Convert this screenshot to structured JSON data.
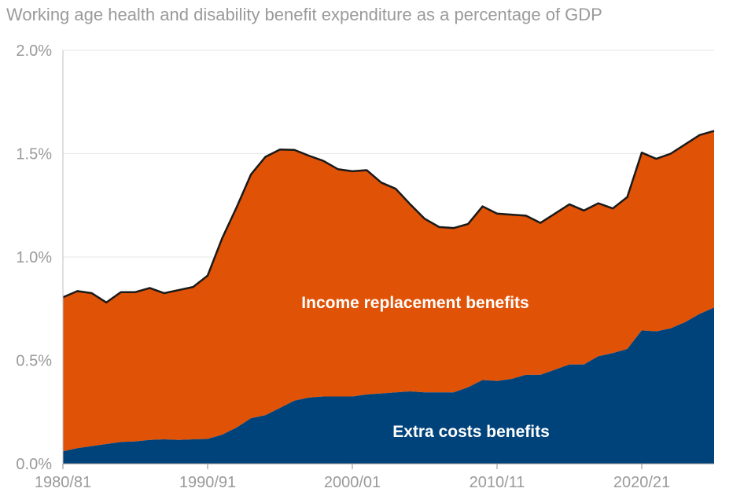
{
  "chart_data": {
    "type": "area",
    "title": "Working age health and disability benefit expenditure as a percentage of GDP",
    "xlabel": "",
    "ylabel": "",
    "ylim": [
      0,
      2.0
    ],
    "y_ticks": [
      "0.0%",
      "0.5%",
      "1.0%",
      "1.5%",
      "2.0%"
    ],
    "y_tick_values": [
      0,
      0.5,
      1.0,
      1.5,
      2.0
    ],
    "x_tick_labels": [
      "1980/81",
      "1990/91",
      "2000/01",
      "2010/11",
      "2020/21"
    ],
    "x_tick_years": [
      1980,
      1990,
      2000,
      2010,
      2020
    ],
    "grid": "horizontal",
    "stacked": true,
    "x": [
      1980,
      1981,
      1982,
      1983,
      1984,
      1985,
      1986,
      1987,
      1988,
      1989,
      1990,
      1991,
      1992,
      1993,
      1994,
      1995,
      1996,
      1997,
      1998,
      1999,
      2000,
      2001,
      2002,
      2003,
      2004,
      2005,
      2006,
      2007,
      2008,
      2009,
      2010,
      2011,
      2012,
      2013,
      2014,
      2015,
      2016,
      2017,
      2018,
      2019,
      2020,
      2021,
      2022,
      2023,
      2024,
      2025
    ],
    "series": [
      {
        "name": "Extra costs benefits",
        "color": "#00427a",
        "values": [
          0.06,
          0.075,
          0.085,
          0.095,
          0.105,
          0.108,
          0.115,
          0.118,
          0.115,
          0.118,
          0.12,
          0.14,
          0.175,
          0.22,
          0.235,
          0.27,
          0.305,
          0.32,
          0.325,
          0.325,
          0.325,
          0.335,
          0.34,
          0.345,
          0.35,
          0.345,
          0.345,
          0.345,
          0.37,
          0.405,
          0.4,
          0.41,
          0.43,
          0.43,
          0.455,
          0.48,
          0.48,
          0.52,
          0.535,
          0.555,
          0.645,
          0.64,
          0.655,
          0.685,
          0.725,
          0.755
        ]
      },
      {
        "name": "Income replacement benefits",
        "color": "#e05206",
        "values": [
          0.745,
          0.76,
          0.74,
          0.685,
          0.725,
          0.722,
          0.735,
          0.707,
          0.725,
          0.737,
          0.79,
          0.95,
          1.065,
          1.18,
          1.25,
          1.25,
          1.213,
          1.17,
          1.14,
          1.1,
          1.09,
          1.085,
          1.02,
          0.985,
          0.905,
          0.84,
          0.8,
          0.795,
          0.79,
          0.84,
          0.81,
          0.795,
          0.77,
          0.735,
          0.755,
          0.775,
          0.745,
          0.74,
          0.7,
          0.735,
          0.86,
          0.835,
          0.845,
          0.86,
          0.865,
          0.855
        ]
      }
    ]
  }
}
